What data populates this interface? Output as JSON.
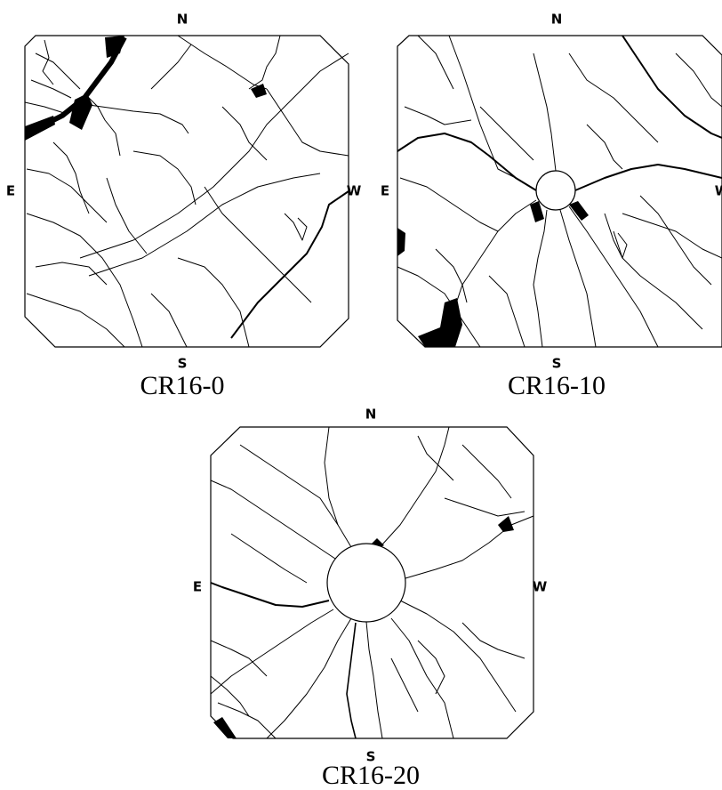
{
  "panels": [
    {
      "compass": {
        "n": "N",
        "e": "E",
        "w": "W",
        "s": "S"
      },
      "caption": "CR16-0"
    },
    {
      "compass": {
        "n": "N",
        "e": "E",
        "w": "W",
        "s": "S"
      },
      "caption": "CR16-10"
    },
    {
      "compass": {
        "n": "N",
        "e": "E",
        "w": "W",
        "s": "S"
      },
      "caption": "CR16-20"
    }
  ]
}
